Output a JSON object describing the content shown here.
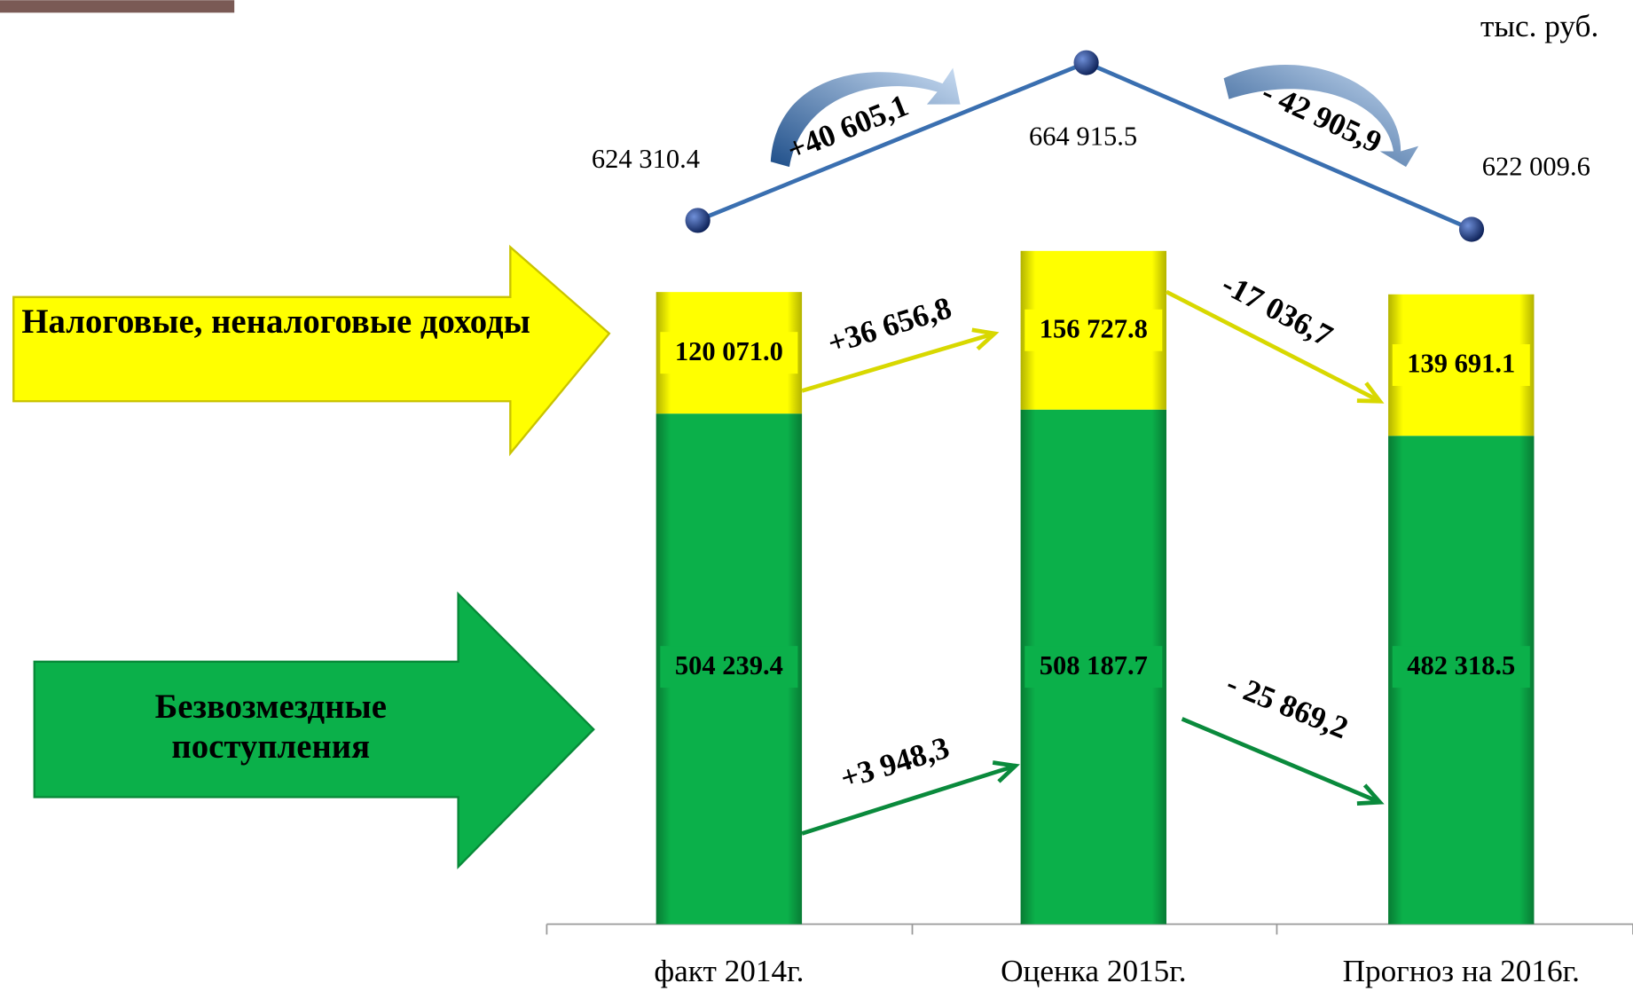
{
  "chart_data": {
    "type": "bar",
    "stacked": true,
    "unit": "тыс. руб.",
    "categories": [
      "факт 2014г.",
      "Оценка 2015г.",
      "Прогноз на 2016г."
    ],
    "series": [
      {
        "name": "Безвозмездные поступления",
        "color": "#0bb04a",
        "values": [
          504239.4,
          508187.7,
          482318.5
        ],
        "value_labels": [
          "504 239.4",
          "508 187.7",
          "482 318.5"
        ],
        "changes": [
          "+3 948,3",
          "- 25 869,2"
        ]
      },
      {
        "name": "Налоговые, неналоговые доходы",
        "color": "#ffff00",
        "values": [
          120071.0,
          156727.8,
          139691.1
        ],
        "value_labels": [
          "120 071.0",
          "156 727.8",
          "139 691.1"
        ],
        "changes": [
          "+36 656,8",
          "-17 036,7"
        ]
      }
    ],
    "totals": {
      "color": "#3a6fb0",
      "values": [
        624310.4,
        664915.5,
        622009.6
      ],
      "value_labels": [
        "624 310.4",
        "664 915.5",
        "622 009.6"
      ],
      "changes": [
        "+40 605,1",
        "- 42 905,9"
      ]
    }
  }
}
